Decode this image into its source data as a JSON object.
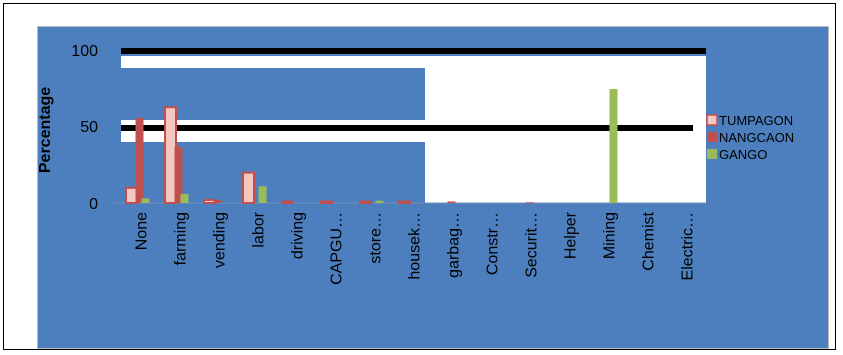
{
  "chart_data": {
    "type": "bar",
    "title": "",
    "xlabel": "",
    "ylabel": "Percentage",
    "ylim": [
      0,
      100
    ],
    "yticks": [
      "0",
      "50",
      "100"
    ],
    "grid": false,
    "legend_position": "right",
    "categories": [
      "None",
      "farming",
      "vending",
      "labor",
      "driving",
      "CAPGU…",
      "store…",
      "housek…",
      "garbag…",
      "Constr…",
      "Securit…",
      "Helper",
      "Mining",
      "Chemist",
      "Electric…"
    ],
    "series": [
      {
        "name": "TUMPAGON",
        "color": "#f4c7c3",
        "values": [
          10,
          63,
          2,
          20,
          1,
          1,
          1,
          1,
          0,
          0,
          0,
          0,
          0,
          0,
          0
        ]
      },
      {
        "name": "NANGCAON",
        "color": "#c0504d",
        "values": [
          56,
          37,
          2,
          0,
          0,
          0,
          0,
          0,
          1,
          0,
          0.5,
          0,
          0,
          0,
          0
        ]
      },
      {
        "name": "GANGO",
        "color": "#9bbb59",
        "values": [
          3,
          6,
          0,
          11,
          0,
          0,
          1.5,
          0,
          0,
          0,
          0,
          0,
          75,
          0,
          0
        ]
      }
    ]
  }
}
